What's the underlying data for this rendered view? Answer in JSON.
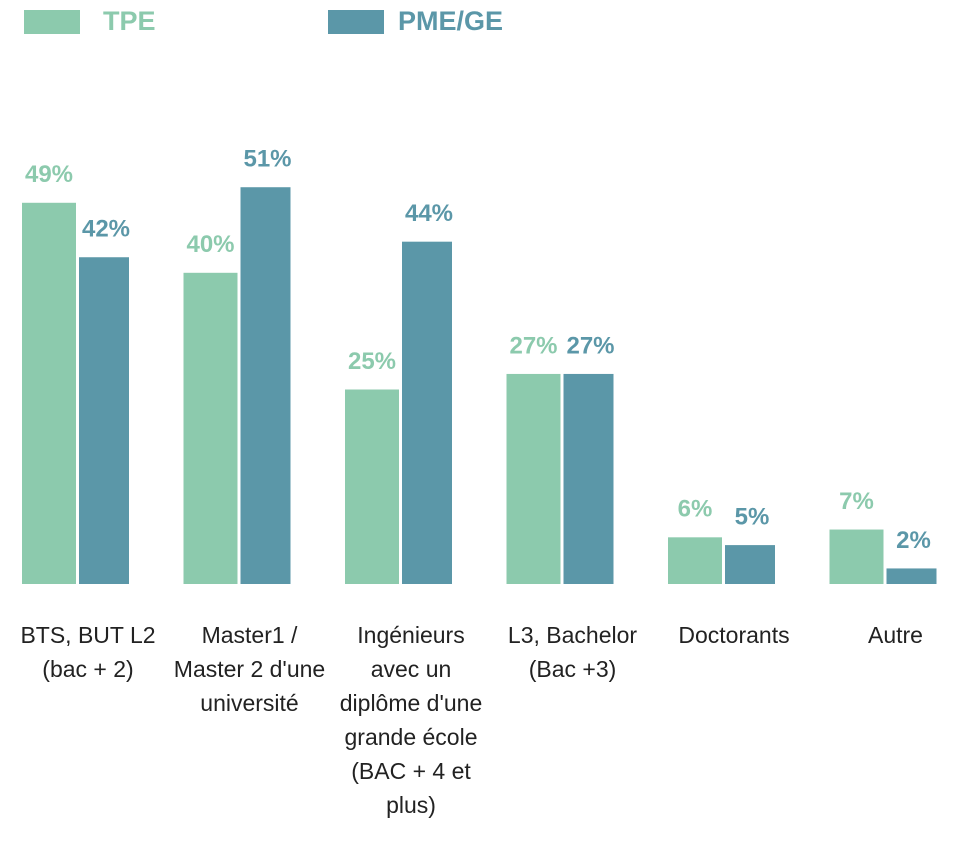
{
  "chart_data": {
    "type": "bar",
    "categories": [
      "BTS, BUT L2 (bac + 2)",
      "Master1 / Master 2 d'une université",
      "Ingénieurs avec un diplôme d'une grande école (BAC + 4 et plus)",
      "L3, Bachelor (Bac +3)",
      "Doctorants",
      "Autre"
    ],
    "series": [
      {
        "name": "TPE",
        "color": "#8ccaad",
        "values": [
          49,
          40,
          25,
          27,
          6,
          7
        ],
        "value_labels": [
          "49%",
          "40%",
          "25%",
          "27%",
          "6%",
          "7%"
        ]
      },
      {
        "name": "PME/GE",
        "color": "#5b97a8",
        "values": [
          42,
          51,
          44,
          27,
          5,
          2
        ],
        "value_labels": [
          "42%",
          "51%",
          "44%",
          "27%",
          "5%",
          "2%"
        ]
      }
    ],
    "legend": "top-left"
  }
}
